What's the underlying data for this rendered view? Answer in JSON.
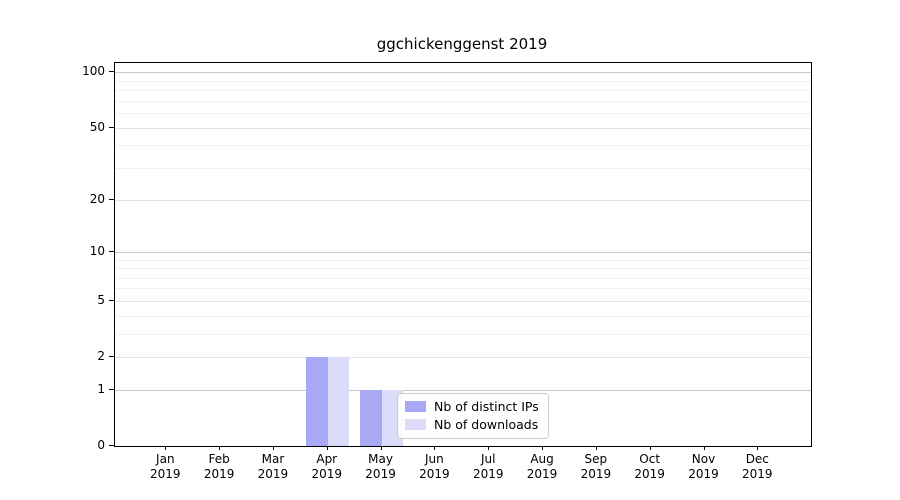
{
  "chart_data": {
    "type": "bar",
    "title": "ggchickenggenst 2019",
    "xlabel": "",
    "ylabel": "",
    "categories": [
      "Jan 2019",
      "Feb 2019",
      "Mar 2019",
      "Apr 2019",
      "May 2019",
      "Jun 2019",
      "Jul 2019",
      "Aug 2019",
      "Sep 2019",
      "Oct 2019",
      "Nov 2019",
      "Dec 2019"
    ],
    "series": [
      {
        "name": "Nb of distinct IPs",
        "color": "#a8a8f4",
        "values": [
          0,
          0,
          0,
          2,
          1,
          0,
          0,
          0,
          0,
          0,
          0,
          0
        ]
      },
      {
        "name": "Nb of downloads",
        "color": "#dcdcf8",
        "values": [
          0,
          0,
          0,
          2,
          1,
          0,
          0,
          0,
          0,
          0,
          0,
          0
        ]
      }
    ],
    "yscale": "log1p",
    "ylim": [
      0,
      110
    ],
    "y_major_ticks": [
      0,
      1,
      2,
      5,
      10,
      20,
      50,
      100
    ],
    "y_power_gridlines": [
      1,
      10,
      100
    ],
    "y_labeled_gridlines": [
      2,
      5,
      20,
      50
    ],
    "y_minor_gridlines": [
      3,
      4,
      6,
      7,
      8,
      9,
      30,
      40,
      60,
      70,
      80,
      90
    ],
    "grid": "horizontal",
    "legend": {
      "position": "inside-lower-center",
      "entries": [
        "Nb of distinct IPs",
        "Nb of downloads"
      ]
    }
  }
}
